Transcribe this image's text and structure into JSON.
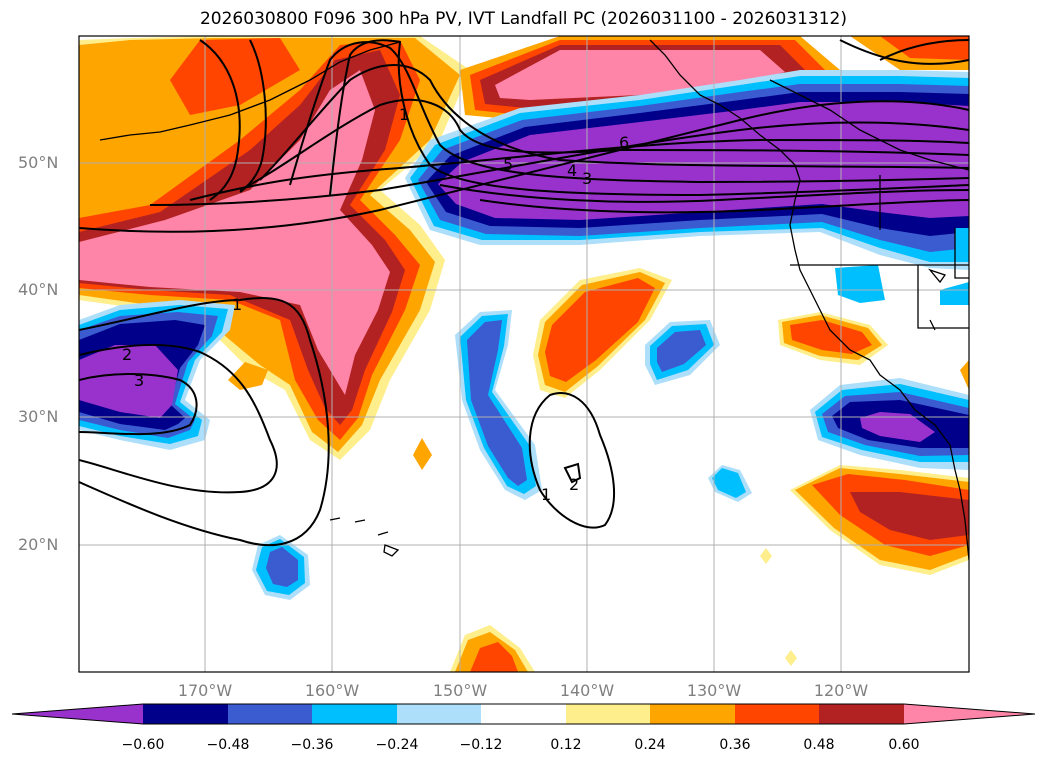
{
  "title": "2026030800 F096 300 hPa PV, IVT Landfall PC (2026031100 - 2026031312)",
  "map": {
    "latitude_labels": [
      "50°N",
      "40°N",
      "30°N",
      "20°N"
    ],
    "longitude_labels": [
      "170°W",
      "160°W",
      "150°W",
      "140°W",
      "130°W",
      "120°W"
    ],
    "contour_labels": [
      "1",
      "1",
      "1",
      "2",
      "2",
      "3",
      "3",
      "4",
      "5",
      "6"
    ]
  },
  "colorbar": {
    "ticks": [
      "−0.60",
      "−0.48",
      "−0.36",
      "−0.24",
      "−0.12",
      "0.12",
      "0.24",
      "0.36",
      "0.48",
      "0.60"
    ],
    "colors": [
      "#9932CC",
      "#00008B",
      "#3B5BD1",
      "#00BFFF",
      "#ADDEFA",
      "#FFFFFF",
      "#FFEE8C",
      "#FFA500",
      "#FF4500",
      "#B22222",
      "#FF85A8"
    ]
  }
}
